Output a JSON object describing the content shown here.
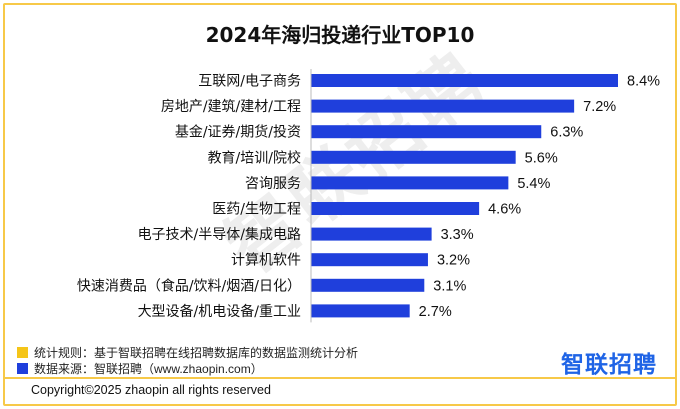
{
  "title": "2024年海归投递行业TOP10",
  "watermark": "智联招聘",
  "colors": {
    "bar": "#1f3fdc",
    "border": "#f7c948",
    "legend_rule": "#f5c518",
    "legend_source": "#1f3fdc",
    "logo": "#1f64e6"
  },
  "chart_data": {
    "type": "bar",
    "orientation": "horizontal",
    "title": "2024年海归投递行业TOP10",
    "categories": [
      "互联网/电子商务",
      "房地产/建筑/建材/工程",
      "基金/证券/期货/投资",
      "教育/培训/院校",
      "咨询服务",
      "医药/生物工程",
      "电子技术/半导体/集成电路",
      "计算机软件",
      "快速消费品（食品/饮料/烟酒/日化）",
      "大型设备/机电设备/重工业"
    ],
    "values": [
      8.4,
      7.2,
      6.3,
      5.6,
      5.4,
      4.6,
      3.3,
      3.2,
      3.1,
      2.7
    ],
    "value_labels": [
      "8.4%",
      "7.2%",
      "6.3%",
      "5.6%",
      "5.4%",
      "4.6%",
      "3.3%",
      "3.2%",
      "3.1%",
      "2.7%"
    ],
    "xlim": [
      0,
      8.4
    ],
    "unit": "%",
    "grid": false,
    "xlabel": "",
    "ylabel": ""
  },
  "footer": {
    "rule_label": "统计规则：",
    "rule_text": "基于智联招聘在线招聘数据库的数据监测统计分析",
    "source_label": "数据来源：",
    "source_text": "智联招聘（www.zhaopin.com）",
    "copyright": "Copyright©2025 zhaopin all rights reserved",
    "logo": "智联招聘"
  }
}
